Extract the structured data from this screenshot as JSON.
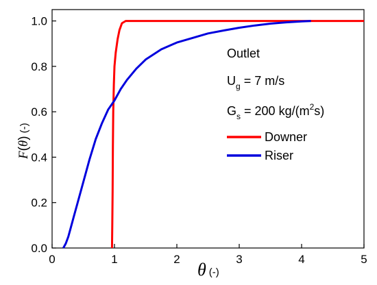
{
  "chart_data": {
    "type": "line",
    "xlabel": {
      "symbol": "θ",
      "unit": "(-)"
    },
    "ylabel": {
      "function": "F",
      "open": "(",
      "arg": "θ",
      "close": ")",
      "unit": "(-)"
    },
    "xlim": [
      0,
      5
    ],
    "ylim": [
      0,
      1.05
    ],
    "xticks": [
      0,
      1,
      2,
      3,
      4,
      5
    ],
    "yticks": [
      0.0,
      0.2,
      0.4,
      0.6,
      0.8,
      1.0
    ],
    "xtick_labels": [
      "0",
      "1",
      "2",
      "3",
      "4",
      "5"
    ],
    "ytick_labels": [
      "0.0",
      "0.2",
      "0.4",
      "0.6",
      "0.8",
      "1.0"
    ],
    "grid": false,
    "annotations": {
      "title": "Outlet",
      "ug": {
        "main": "U",
        "sub": "g",
        "rest": " = 7 m/s"
      },
      "gs": {
        "main": "G",
        "sub": "s",
        "rest": " = 200 kg/(m",
        "sup": "2",
        "end": "s)"
      }
    },
    "legend_position": "right-center",
    "series": [
      {
        "name": "Downer",
        "color": "#ff0000",
        "x": [
          0.96,
          0.965,
          0.97,
          0.975,
          0.98,
          0.99,
          1.0,
          1.02,
          1.05,
          1.08,
          1.12,
          1.18,
          1.3,
          1.5,
          2.0,
          3.0,
          4.0,
          5.0
        ],
        "y": [
          0.0,
          0.1,
          0.25,
          0.45,
          0.6,
          0.72,
          0.8,
          0.86,
          0.92,
          0.96,
          0.99,
          1.0,
          1.0,
          1.0,
          1.0,
          1.0,
          1.0,
          1.0
        ]
      },
      {
        "name": "Riser",
        "color": "#0000dd",
        "x": [
          0.18,
          0.22,
          0.26,
          0.3,
          0.35,
          0.4,
          0.5,
          0.6,
          0.7,
          0.8,
          0.9,
          1.0,
          1.1,
          1.2,
          1.35,
          1.5,
          1.75,
          2.0,
          2.25,
          2.5,
          2.75,
          3.0,
          3.25,
          3.5,
          3.75,
          4.0,
          4.15
        ],
        "y": [
          0.0,
          0.02,
          0.05,
          0.09,
          0.14,
          0.19,
          0.29,
          0.39,
          0.48,
          0.55,
          0.61,
          0.65,
          0.7,
          0.74,
          0.79,
          0.83,
          0.875,
          0.905,
          0.925,
          0.945,
          0.958,
          0.97,
          0.98,
          0.988,
          0.994,
          0.998,
          1.0
        ]
      }
    ]
  }
}
